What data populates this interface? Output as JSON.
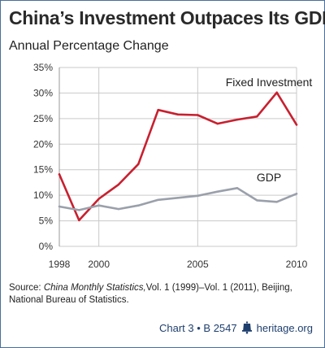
{
  "header": {
    "title": "China’s Investment Outpaces Its GDP",
    "subtitle": "Annual Percentage Change"
  },
  "chart_data": {
    "type": "line",
    "x": [
      1998,
      1999,
      2000,
      2001,
      2002,
      2003,
      2004,
      2005,
      2006,
      2007,
      2008,
      2009,
      2010
    ],
    "series": [
      {
        "name": "Fixed Investment",
        "color": "#c8202f",
        "values": [
          14.1,
          5.1,
          9.3,
          12.1,
          16.1,
          26.7,
          25.8,
          25.7,
          24.0,
          24.8,
          25.4,
          30.1,
          23.8
        ]
      },
      {
        "name": "GDP",
        "color": "#9aa0ab",
        "values": [
          7.8,
          7.1,
          8.0,
          7.3,
          8.0,
          9.1,
          9.5,
          9.9,
          10.7,
          11.4,
          9.0,
          8.7,
          10.3
        ]
      }
    ],
    "ylim": [
      0,
      35
    ],
    "yticks": [
      0,
      5,
      10,
      15,
      20,
      25,
      30,
      35
    ],
    "ytick_labels": [
      "0%",
      "5%",
      "10%",
      "15%",
      "20%",
      "25%",
      "30%",
      "35%"
    ],
    "xticks": [
      1998,
      2000,
      2005,
      2010
    ],
    "xtick_labels": [
      "1998",
      "2000",
      "2005",
      "2010"
    ],
    "grid": "y",
    "vlines": [
      2000,
      2005,
      2010
    ]
  },
  "source": {
    "label": "Source: ",
    "italic": "China Monthly Statistics,",
    "rest": "Vol. 1 (1999)–Vol. 1 (2011), Beijing, National Bureau of Statistics."
  },
  "footer": {
    "chart_ref": "Chart 3 • B 2547",
    "site": "heritage.org"
  }
}
